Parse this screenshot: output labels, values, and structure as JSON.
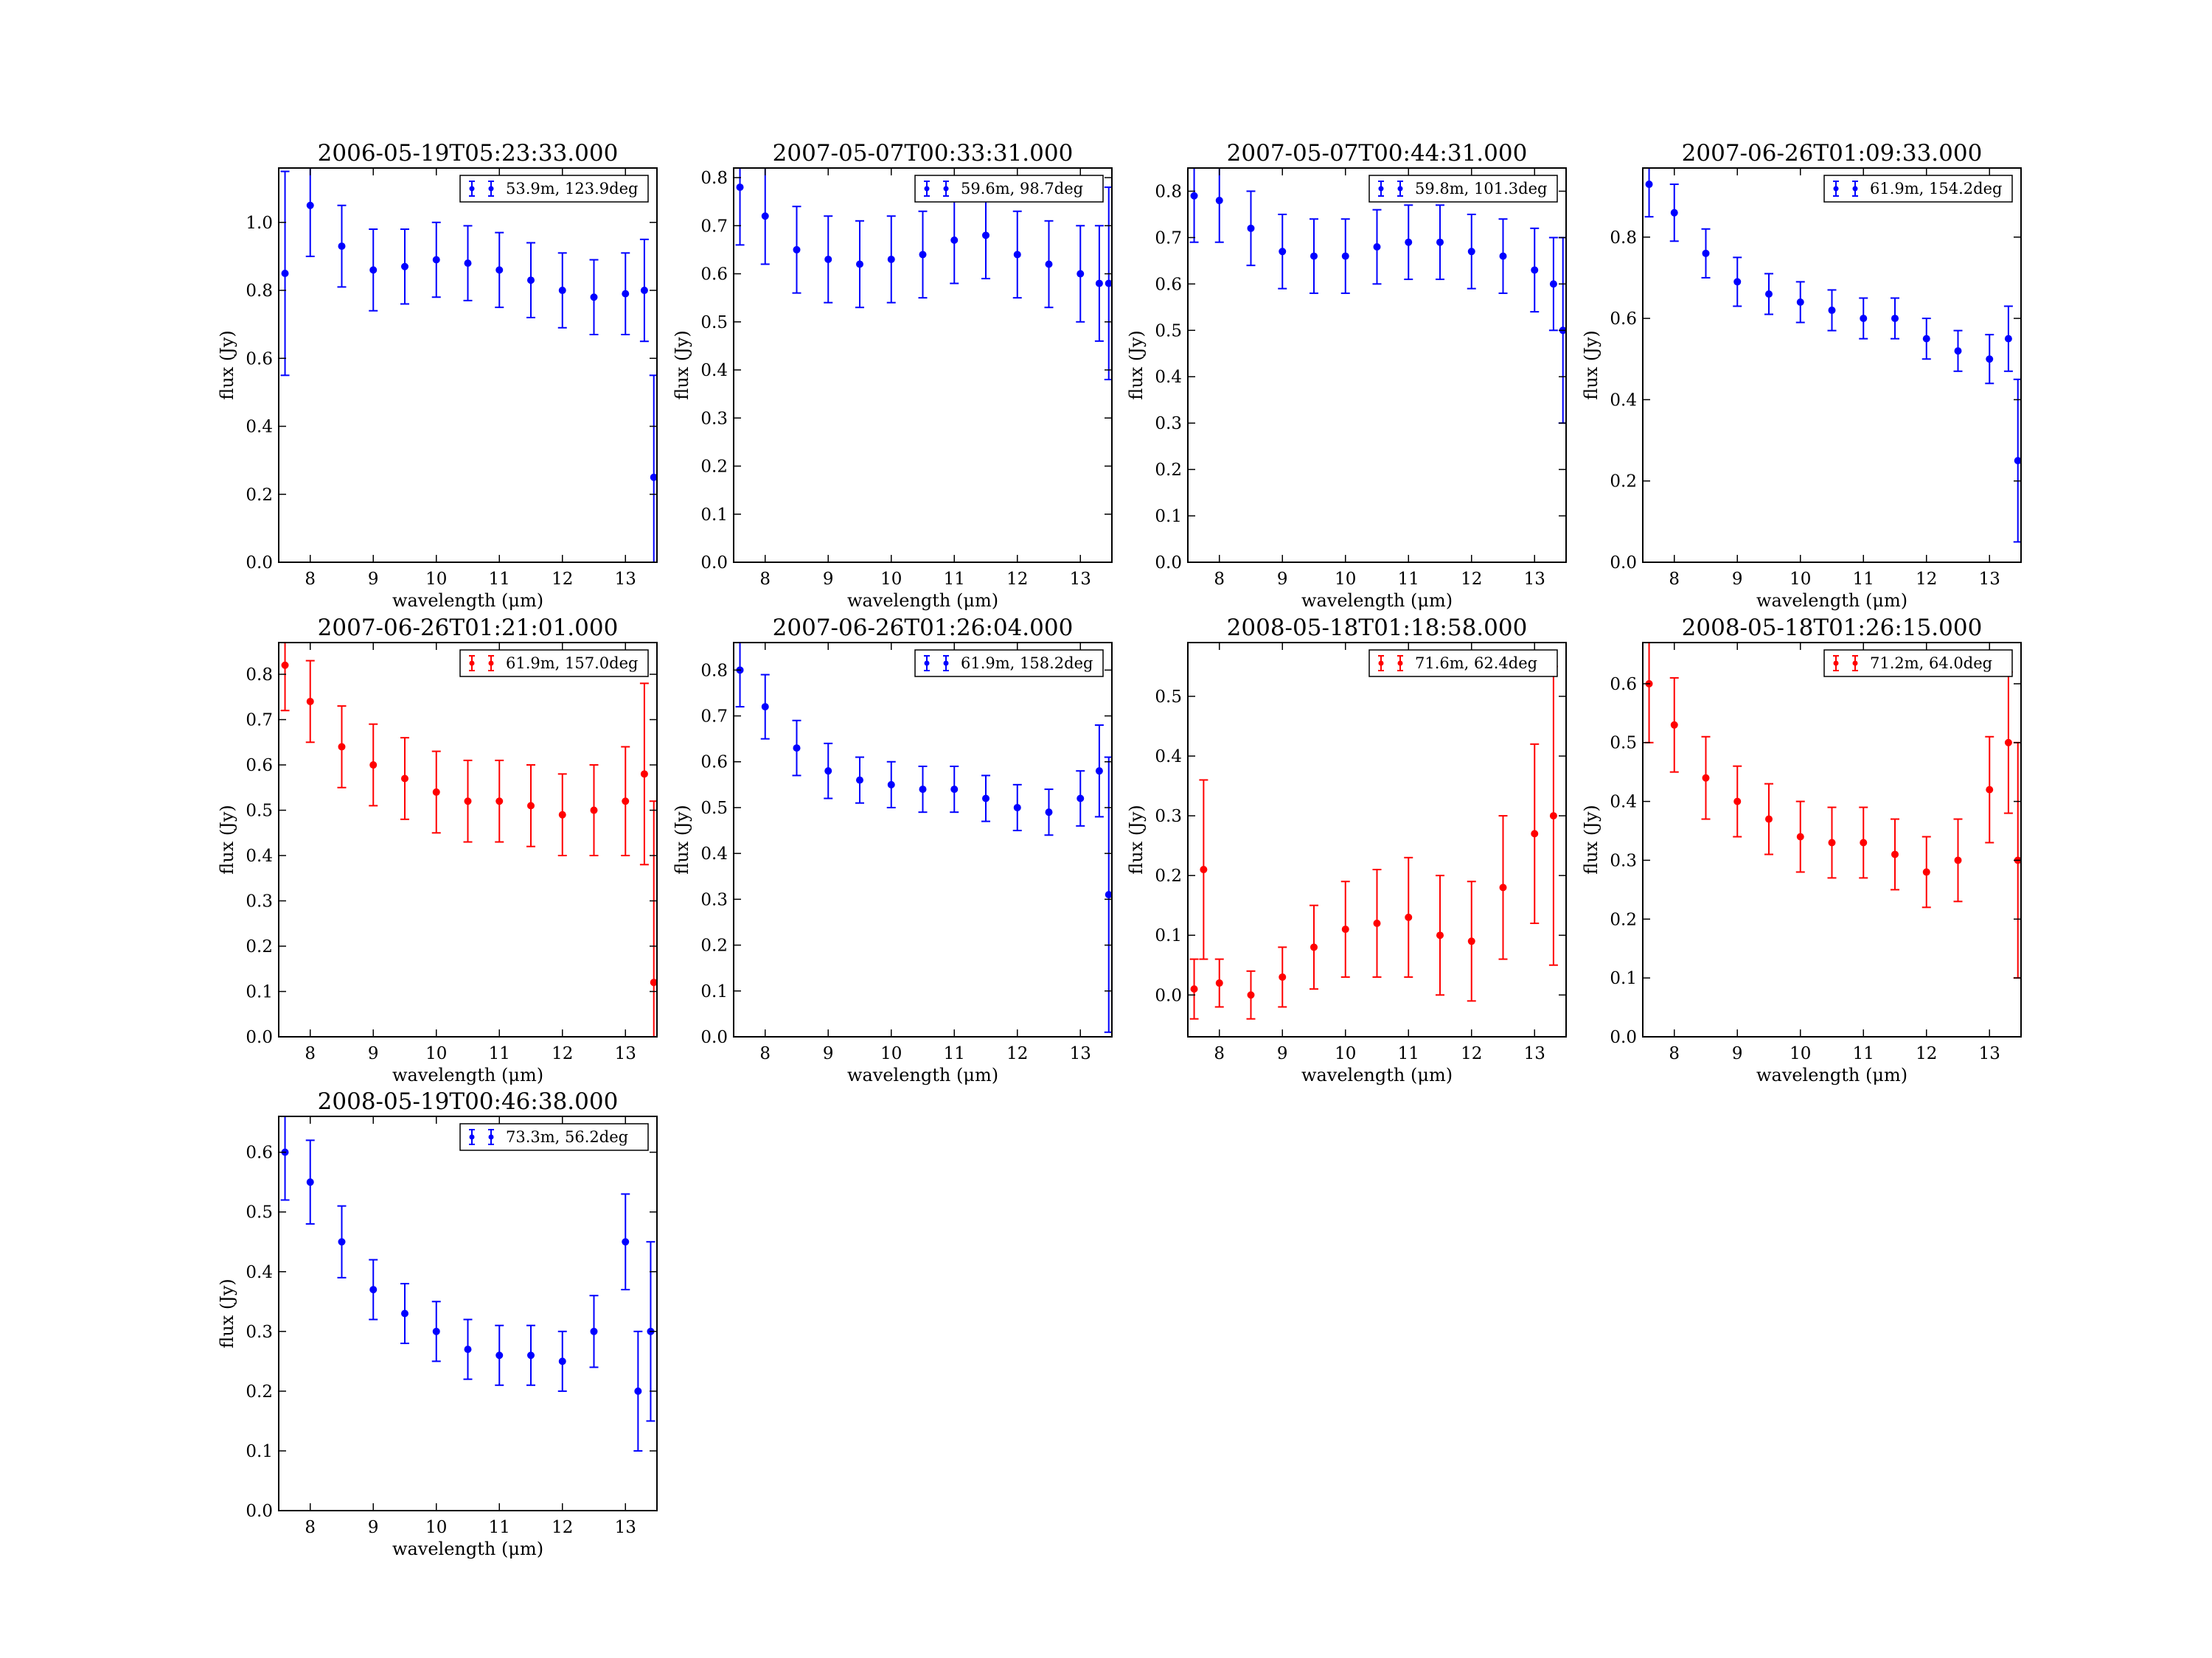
{
  "figure": {
    "x_label": "wavelength (μm)",
    "y_label": "flux (Jy)"
  },
  "colors": {
    "blue": "#0000ff",
    "red": "#ff0000"
  },
  "chart_data": [
    {
      "type": "scatter",
      "title": "2006-05-19T05:23:33.000",
      "color": "#0000ff",
      "legend": "53.9m, 123.9deg",
      "legend_placement": "top-right",
      "xlabel": "wavelength (μm)",
      "ylabel": "flux (Jy)",
      "xlim": [
        7.5,
        13.5
      ],
      "ylim": [
        0,
        1.16
      ],
      "xticks": [
        8,
        9,
        10,
        11,
        12,
        13
      ],
      "yticks": [
        0.0,
        0.2,
        0.4,
        0.6,
        0.8,
        1.0
      ],
      "grid": false,
      "series": [
        {
          "x": [
            7.6,
            8.0,
            8.5,
            9.0,
            9.5,
            10.0,
            10.5,
            11.0,
            11.5,
            12.0,
            12.5,
            13.0,
            13.3,
            13.45
          ],
          "y": [
            0.85,
            1.05,
            0.93,
            0.86,
            0.87,
            0.89,
            0.88,
            0.86,
            0.83,
            0.8,
            0.78,
            0.79,
            0.8,
            0.25
          ],
          "err": [
            0.3,
            0.15,
            0.12,
            0.12,
            0.11,
            0.11,
            0.11,
            0.11,
            0.11,
            0.11,
            0.11,
            0.12,
            0.15,
            0.3
          ]
        }
      ]
    },
    {
      "type": "scatter",
      "title": "2007-05-07T00:33:31.000",
      "color": "#0000ff",
      "legend": "59.6m, 98.7deg",
      "legend_placement": "top-right",
      "xlabel": "wavelength (μm)",
      "ylabel": "flux (Jy)",
      "xlim": [
        7.5,
        13.5
      ],
      "ylim": [
        0,
        0.82
      ],
      "xticks": [
        8,
        9,
        10,
        11,
        12,
        13
      ],
      "yticks": [
        0.0,
        0.1,
        0.2,
        0.3,
        0.4,
        0.5,
        0.6,
        0.7,
        0.8
      ],
      "grid": false,
      "series": [
        {
          "x": [
            7.6,
            8.0,
            8.5,
            9.0,
            9.5,
            10.0,
            10.5,
            11.0,
            11.5,
            12.0,
            12.5,
            13.0,
            13.3,
            13.45
          ],
          "y": [
            0.78,
            0.72,
            0.65,
            0.63,
            0.62,
            0.63,
            0.64,
            0.67,
            0.68,
            0.64,
            0.62,
            0.6,
            0.58,
            0.58
          ],
          "err": [
            0.12,
            0.1,
            0.09,
            0.09,
            0.09,
            0.09,
            0.09,
            0.09,
            0.09,
            0.09,
            0.09,
            0.1,
            0.12,
            0.2
          ]
        }
      ]
    },
    {
      "type": "scatter",
      "title": "2007-05-07T00:44:31.000",
      "color": "#0000ff",
      "legend": "59.8m, 101.3deg",
      "legend_placement": "top-right",
      "xlabel": "wavelength (μm)",
      "ylabel": "flux (Jy)",
      "xlim": [
        7.5,
        13.5
      ],
      "ylim": [
        0,
        0.85
      ],
      "xticks": [
        8,
        9,
        10,
        11,
        12,
        13
      ],
      "yticks": [
        0.0,
        0.1,
        0.2,
        0.3,
        0.4,
        0.5,
        0.6,
        0.7,
        0.8
      ],
      "grid": false,
      "series": [
        {
          "x": [
            7.6,
            8.0,
            8.5,
            9.0,
            9.5,
            10.0,
            10.5,
            11.0,
            11.5,
            12.0,
            12.5,
            13.0,
            13.3,
            13.45
          ],
          "y": [
            0.79,
            0.78,
            0.72,
            0.67,
            0.66,
            0.66,
            0.68,
            0.69,
            0.69,
            0.67,
            0.66,
            0.63,
            0.6,
            0.5
          ],
          "err": [
            0.1,
            0.09,
            0.08,
            0.08,
            0.08,
            0.08,
            0.08,
            0.08,
            0.08,
            0.08,
            0.08,
            0.09,
            0.1,
            0.2
          ]
        }
      ]
    },
    {
      "type": "scatter",
      "title": "2007-06-26T01:09:33.000",
      "color": "#0000ff",
      "legend": "61.9m, 154.2deg",
      "legend_placement": "top-right",
      "xlabel": "wavelength (μm)",
      "ylabel": "flux (Jy)",
      "xlim": [
        7.5,
        13.5
      ],
      "ylim": [
        0,
        0.97
      ],
      "xticks": [
        8,
        9,
        10,
        11,
        12,
        13
      ],
      "yticks": [
        0.0,
        0.2,
        0.4,
        0.6,
        0.8
      ],
      "grid": false,
      "series": [
        {
          "x": [
            7.6,
            8.0,
            8.5,
            9.0,
            9.5,
            10.0,
            10.5,
            11.0,
            11.5,
            12.0,
            12.5,
            13.0,
            13.3,
            13.45
          ],
          "y": [
            0.93,
            0.86,
            0.76,
            0.69,
            0.66,
            0.64,
            0.62,
            0.6,
            0.6,
            0.55,
            0.52,
            0.5,
            0.55,
            0.25
          ],
          "err": [
            0.08,
            0.07,
            0.06,
            0.06,
            0.05,
            0.05,
            0.05,
            0.05,
            0.05,
            0.05,
            0.05,
            0.06,
            0.08,
            0.2
          ]
        }
      ]
    },
    {
      "type": "scatter",
      "title": "2007-06-26T01:21:01.000",
      "color": "#ff0000",
      "legend": "61.9m, 157.0deg",
      "legend_placement": "top-right",
      "xlabel": "wavelength (μm)",
      "ylabel": "flux (Jy)",
      "xlim": [
        7.5,
        13.5
      ],
      "ylim": [
        0,
        0.87
      ],
      "xticks": [
        8,
        9,
        10,
        11,
        12,
        13
      ],
      "yticks": [
        0.0,
        0.1,
        0.2,
        0.3,
        0.4,
        0.5,
        0.6,
        0.7,
        0.8
      ],
      "grid": false,
      "series": [
        {
          "x": [
            7.6,
            8.0,
            8.5,
            9.0,
            9.5,
            10.0,
            10.5,
            11.0,
            11.5,
            12.0,
            12.5,
            13.0,
            13.3,
            13.45
          ],
          "y": [
            0.82,
            0.74,
            0.64,
            0.6,
            0.57,
            0.54,
            0.52,
            0.52,
            0.51,
            0.49,
            0.5,
            0.52,
            0.58,
            0.12
          ],
          "err": [
            0.1,
            0.09,
            0.09,
            0.09,
            0.09,
            0.09,
            0.09,
            0.09,
            0.09,
            0.09,
            0.1,
            0.12,
            0.2,
            0.4
          ]
        }
      ]
    },
    {
      "type": "scatter",
      "title": "2007-06-26T01:26:04.000",
      "color": "#0000ff",
      "legend": "61.9m, 158.2deg",
      "legend_placement": "top-right",
      "xlabel": "wavelength (μm)",
      "ylabel": "flux (Jy)",
      "xlim": [
        7.5,
        13.5
      ],
      "ylim": [
        0,
        0.86
      ],
      "xticks": [
        8,
        9,
        10,
        11,
        12,
        13
      ],
      "yticks": [
        0.0,
        0.1,
        0.2,
        0.3,
        0.4,
        0.5,
        0.6,
        0.7,
        0.8
      ],
      "grid": false,
      "series": [
        {
          "x": [
            7.6,
            8.0,
            8.5,
            9.0,
            9.5,
            10.0,
            10.5,
            11.0,
            11.5,
            12.0,
            12.5,
            13.0,
            13.3,
            13.45
          ],
          "y": [
            0.8,
            0.72,
            0.63,
            0.58,
            0.56,
            0.55,
            0.54,
            0.54,
            0.52,
            0.5,
            0.49,
            0.52,
            0.58,
            0.31
          ],
          "err": [
            0.08,
            0.07,
            0.06,
            0.06,
            0.05,
            0.05,
            0.05,
            0.05,
            0.05,
            0.05,
            0.05,
            0.06,
            0.1,
            0.3
          ]
        }
      ]
    },
    {
      "type": "scatter",
      "title": "2008-05-18T01:18:58.000",
      "color": "#ff0000",
      "legend": "71.6m, 62.4deg",
      "legend_placement": "top-right",
      "xlabel": "wavelength (μm)",
      "ylabel": "flux (Jy)",
      "xlim": [
        7.5,
        13.5
      ],
      "ylim": [
        -0.07,
        0.59
      ],
      "xticks": [
        8,
        9,
        10,
        11,
        12,
        13
      ],
      "yticks": [
        0.0,
        0.1,
        0.2,
        0.3,
        0.4,
        0.5
      ],
      "grid": false,
      "series": [
        {
          "x": [
            7.6,
            7.75,
            8.0,
            8.5,
            9.0,
            9.5,
            10.0,
            10.5,
            11.0,
            11.5,
            12.0,
            12.5,
            13.0,
            13.3
          ],
          "y": [
            0.01,
            0.21,
            0.02,
            0.0,
            0.03,
            0.08,
            0.11,
            0.12,
            0.13,
            0.1,
            0.09,
            0.18,
            0.27,
            0.3
          ],
          "err": [
            0.05,
            0.15,
            0.04,
            0.04,
            0.05,
            0.07,
            0.08,
            0.09,
            0.1,
            0.1,
            0.1,
            0.12,
            0.15,
            0.25
          ]
        }
      ]
    },
    {
      "type": "scatter",
      "title": "2008-05-18T01:26:15.000",
      "color": "#ff0000",
      "legend": "71.2m, 64.0deg",
      "legend_placement": "top-right",
      "xlabel": "wavelength (μm)",
      "ylabel": "flux (Jy)",
      "xlim": [
        7.5,
        13.5
      ],
      "ylim": [
        0,
        0.67
      ],
      "xticks": [
        8,
        9,
        10,
        11,
        12,
        13
      ],
      "yticks": [
        0.0,
        0.1,
        0.2,
        0.3,
        0.4,
        0.5,
        0.6
      ],
      "grid": false,
      "series": [
        {
          "x": [
            7.6,
            8.0,
            8.5,
            9.0,
            9.5,
            10.0,
            10.5,
            11.0,
            11.5,
            12.0,
            12.5,
            13.0,
            13.3,
            13.45
          ],
          "y": [
            0.6,
            0.53,
            0.44,
            0.4,
            0.37,
            0.34,
            0.33,
            0.33,
            0.31,
            0.28,
            0.3,
            0.42,
            0.5,
            0.3
          ],
          "err": [
            0.1,
            0.08,
            0.07,
            0.06,
            0.06,
            0.06,
            0.06,
            0.06,
            0.06,
            0.06,
            0.07,
            0.09,
            0.12,
            0.2
          ]
        }
      ]
    },
    {
      "type": "scatter",
      "title": "2008-05-19T00:46:38.000",
      "color": "#0000ff",
      "legend": "73.3m, 56.2deg",
      "legend_placement": "top-right",
      "xlabel": "wavelength (μm)",
      "ylabel": "flux (Jy)",
      "xlim": [
        7.5,
        13.5
      ],
      "ylim": [
        0,
        0.66
      ],
      "xticks": [
        8,
        9,
        10,
        11,
        12,
        13
      ],
      "yticks": [
        0.0,
        0.1,
        0.2,
        0.3,
        0.4,
        0.5,
        0.6
      ],
      "grid": false,
      "series": [
        {
          "x": [
            7.6,
            8.0,
            8.5,
            9.0,
            9.5,
            10.0,
            10.5,
            11.0,
            11.5,
            12.0,
            12.5,
            13.0,
            13.2,
            13.4
          ],
          "y": [
            0.6,
            0.55,
            0.45,
            0.37,
            0.33,
            0.3,
            0.27,
            0.26,
            0.26,
            0.25,
            0.3,
            0.45,
            0.2,
            0.3
          ],
          "err": [
            0.08,
            0.07,
            0.06,
            0.05,
            0.05,
            0.05,
            0.05,
            0.05,
            0.05,
            0.05,
            0.06,
            0.08,
            0.1,
            0.15
          ]
        }
      ]
    }
  ]
}
